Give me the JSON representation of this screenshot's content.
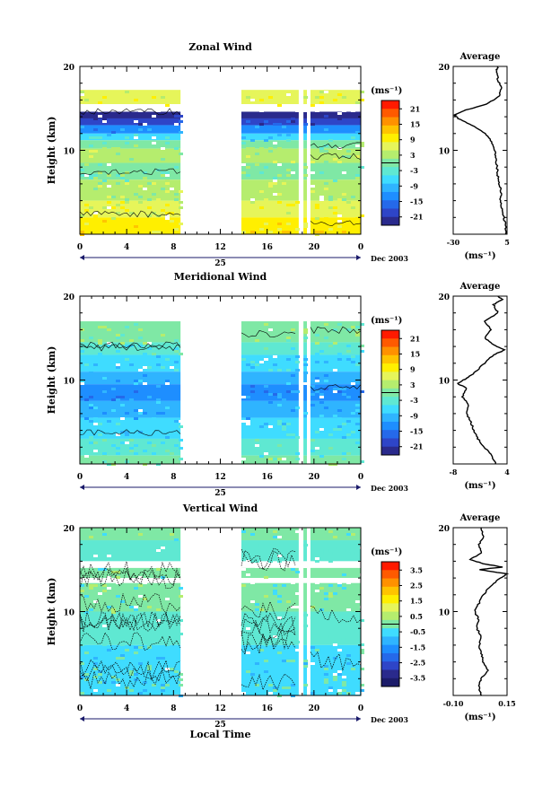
{
  "chart_data": [
    {
      "type": "heatmap",
      "title": "Zonal Wind",
      "ylabel": "Height (km)",
      "y_ticks": [
        "20",
        "10"
      ],
      "x_ticks": [
        "0",
        "4",
        "8",
        "12",
        "16",
        "20",
        "0"
      ],
      "date_label": "25",
      "month_label": "Dec 2003",
      "colorbar": {
        "unit": "(ms⁻¹)",
        "ticks": [
          "21",
          "15",
          "9",
          "3",
          "-3",
          "-9",
          "-15",
          "-21"
        ],
        "colors": [
          "#ff1a00",
          "#ff5a00",
          "#ff9100",
          "#ffc400",
          "#ffef00",
          "#e6f55a",
          "#b5ed6e",
          "#7fe8a5",
          "#5fe8d2",
          "#3fdcff",
          "#2fb4ff",
          "#1e8eff",
          "#2569ea",
          "#2e45c8",
          "#2a2a8c"
        ],
        "zero_line": true
      },
      "data_gaps_hours": [
        [
          8.6,
          13.8
        ],
        [
          18.7,
          19.1
        ],
        [
          19.4,
          19.7
        ]
      ],
      "bands": [
        {
          "from": 17.2,
          "to": 20,
          "color": "none"
        },
        {
          "from": 15.5,
          "to": 17.2,
          "color": "#e6f55a"
        },
        {
          "from": 14.6,
          "to": 15.5,
          "color": "#ffffff"
        },
        {
          "from": 13.8,
          "to": 14.6,
          "color": "#2a2a8c"
        },
        {
          "from": 13.0,
          "to": 13.8,
          "color": "#2e45c8"
        },
        {
          "from": 12.0,
          "to": 13.0,
          "color": "#1e8eff"
        },
        {
          "from": 11.2,
          "to": 12.0,
          "color": "#3fdcff"
        },
        {
          "from": 10.2,
          "to": 11.2,
          "color": "#7fe8a5"
        },
        {
          "from": 8.5,
          "to": 10.2,
          "color": "#b5ed6e"
        },
        {
          "from": 6.5,
          "to": 8.5,
          "color": "#7fe8a5"
        },
        {
          "from": 4.0,
          "to": 6.5,
          "color": "#b5ed6e"
        },
        {
          "from": 2.0,
          "to": 4.0,
          "color": "#e6f55a"
        },
        {
          "from": 0.0,
          "to": 2.0,
          "color": "#ffef00"
        }
      ],
      "average": {
        "title": "Average",
        "xlabel": "(ms⁻¹)",
        "x_ticks": [
          "-30",
          "5"
        ],
        "y_ticks": [
          "20",
          "10"
        ],
        "xlim": [
          -30,
          5
        ],
        "ylim": [
          0,
          20
        ],
        "profile": [
          [
            0,
            4.5
          ],
          [
            1,
            4
          ],
          [
            2,
            3
          ],
          [
            3,
            1.5
          ],
          [
            4,
            0.5
          ],
          [
            5,
            1.2
          ],
          [
            6,
            0
          ],
          [
            7,
            -1
          ],
          [
            8,
            -1.5
          ],
          [
            9,
            -2.5
          ],
          [
            10,
            -3
          ],
          [
            11,
            -5
          ],
          [
            12,
            -9
          ],
          [
            13,
            -18
          ],
          [
            13.8,
            -27
          ],
          [
            14.2,
            -29
          ],
          [
            14.8,
            -22
          ],
          [
            15.5,
            -8
          ],
          [
            16.5,
            0
          ],
          [
            17.5,
            1
          ],
          [
            18.5,
            -1
          ],
          [
            19.5,
            -2
          ],
          [
            20,
            -1
          ]
        ]
      }
    },
    {
      "type": "heatmap",
      "title": "Meridional Wind",
      "ylabel": "Height (km)",
      "y_ticks": [
        "20",
        "10"
      ],
      "x_ticks": [
        "0",
        "4",
        "8",
        "12",
        "16",
        "20",
        "0"
      ],
      "date_label": "25",
      "month_label": "Dec 2003",
      "colorbar": {
        "unit": "(ms⁻¹)",
        "ticks": [
          "21",
          "15",
          "9",
          "3",
          "-3",
          "-9",
          "-15",
          "-21"
        ],
        "colors": [
          "#ff1a00",
          "#ff5a00",
          "#ff9100",
          "#ffc400",
          "#ffef00",
          "#e6f55a",
          "#b5ed6e",
          "#7fe8a5",
          "#5fe8d2",
          "#3fdcff",
          "#2fb4ff",
          "#1e8eff",
          "#2569ea",
          "#2e45c8",
          "#2a2a8c"
        ],
        "zero_line": true
      },
      "data_gaps_hours": [
        [
          8.6,
          13.8
        ],
        [
          18.7,
          19.1
        ],
        [
          19.4,
          19.7
        ]
      ],
      "bands": [
        {
          "from": 17.0,
          "to": 20,
          "color": "none"
        },
        {
          "from": 14.5,
          "to": 17.0,
          "color": "#7fe8a5"
        },
        {
          "from": 13.0,
          "to": 14.5,
          "color": "#5fe8d2"
        },
        {
          "from": 11.0,
          "to": 13.0,
          "color": "#3fdcff"
        },
        {
          "from": 9.5,
          "to": 11.0,
          "color": "#2fb4ff"
        },
        {
          "from": 7.5,
          "to": 9.5,
          "color": "#1e8eff"
        },
        {
          "from": 5.5,
          "to": 7.5,
          "color": "#2fb4ff"
        },
        {
          "from": 3.0,
          "to": 5.5,
          "color": "#3fdcff"
        },
        {
          "from": 1.0,
          "to": 3.0,
          "color": "#5fe8d2"
        },
        {
          "from": 0.0,
          "to": 1.0,
          "color": "#7fe8a5"
        }
      ],
      "average": {
        "title": "Average",
        "xlabel": "(ms⁻¹)",
        "x_ticks": [
          "-8",
          "4"
        ],
        "y_ticks": [
          "20",
          "10"
        ],
        "xlim": [
          -8,
          4
        ],
        "ylim": [
          0,
          20
        ],
        "profile": [
          [
            0,
            1.5
          ],
          [
            1,
            0.5
          ],
          [
            2,
            -1
          ],
          [
            3,
            -2.5
          ],
          [
            4,
            -3.5
          ],
          [
            5,
            -4
          ],
          [
            6,
            -5
          ],
          [
            7,
            -4.5
          ],
          [
            8,
            -6
          ],
          [
            9,
            -5
          ],
          [
            9.6,
            -7
          ],
          [
            10.2,
            -5
          ],
          [
            11,
            -3
          ],
          [
            12,
            -1
          ],
          [
            13,
            1
          ],
          [
            13.6,
            3.5
          ],
          [
            14.2,
            1
          ],
          [
            15,
            -1
          ],
          [
            16,
            0.5
          ],
          [
            17,
            -1
          ],
          [
            18,
            2
          ],
          [
            19,
            1
          ],
          [
            19.6,
            3
          ],
          [
            20,
            2
          ]
        ]
      }
    },
    {
      "type": "heatmap",
      "title": "Vertical Wind",
      "ylabel": "Height (km)",
      "xlabel": "Local Time",
      "y_ticks": [
        "20",
        "10"
      ],
      "x_ticks": [
        "0",
        "4",
        "8",
        "12",
        "16",
        "20",
        "0"
      ],
      "date_label": "25",
      "month_label": "Dec 2003",
      "colorbar": {
        "unit": "(ms⁻¹)",
        "ticks": [
          "3.5",
          "2.5",
          "1.5",
          "0.5",
          "-0.5",
          "-1.5",
          "-2.5",
          "-3.5"
        ],
        "colors": [
          "#ff1a00",
          "#ff5a00",
          "#ff9100",
          "#ffc400",
          "#ffef00",
          "#e6f55a",
          "#b5ed6e",
          "#7fe8a5",
          "#3fdcff",
          "#2fb4ff",
          "#1e8eff",
          "#2569ea",
          "#2e45c8",
          "#2a2a8c",
          "#1c1c6a"
        ],
        "zero_line": true
      },
      "data_gaps_hours": [
        [
          8.6,
          13.8
        ],
        [
          18.7,
          19.1
        ],
        [
          19.4,
          19.7
        ]
      ],
      "bands": [
        {
          "from": 18.5,
          "to": 20,
          "color": "#7fe8a5"
        },
        {
          "from": 16.0,
          "to": 18.5,
          "color": "#5fe8d2"
        },
        {
          "from": 15.2,
          "to": 16.0,
          "color": "#ffffff"
        },
        {
          "from": 14.0,
          "to": 15.2,
          "color": "#7fe8a5"
        },
        {
          "from": 13.4,
          "to": 14.0,
          "color": "#ffffff"
        },
        {
          "from": 10.0,
          "to": 13.4,
          "color": "#7fe8a5"
        },
        {
          "from": 6.0,
          "to": 10.0,
          "color": "#5fe8d2"
        },
        {
          "from": 0.0,
          "to": 6.0,
          "color": "#3fdcff"
        }
      ],
      "average": {
        "title": "Average",
        "xlabel": "(ms⁻¹)",
        "x_ticks": [
          "-0.10",
          "0.15"
        ],
        "y_ticks": [
          "20",
          "10"
        ],
        "xlim": [
          -0.1,
          0.15
        ],
        "ylim": [
          0,
          20
        ],
        "profile": [
          [
            0,
            0.03
          ],
          [
            1,
            0.02
          ],
          [
            2,
            0.03
          ],
          [
            3,
            0.06
          ],
          [
            4,
            0.04
          ],
          [
            5,
            0.03
          ],
          [
            6,
            0.02
          ],
          [
            7,
            0.03
          ],
          [
            8,
            0.01
          ],
          [
            9,
            0.02
          ],
          [
            10,
            0.0
          ],
          [
            11,
            0.02
          ],
          [
            12,
            0.04
          ],
          [
            13,
            0.07
          ],
          [
            14,
            0.12
          ],
          [
            14.5,
            0.15
          ],
          [
            15,
            0.02
          ],
          [
            15.3,
            0.13
          ],
          [
            15.7,
            0.04
          ],
          [
            16.2,
            -0.02
          ],
          [
            17,
            0.03
          ],
          [
            18,
            0.02
          ],
          [
            19,
            0.04
          ],
          [
            20,
            0.03
          ]
        ]
      }
    }
  ]
}
